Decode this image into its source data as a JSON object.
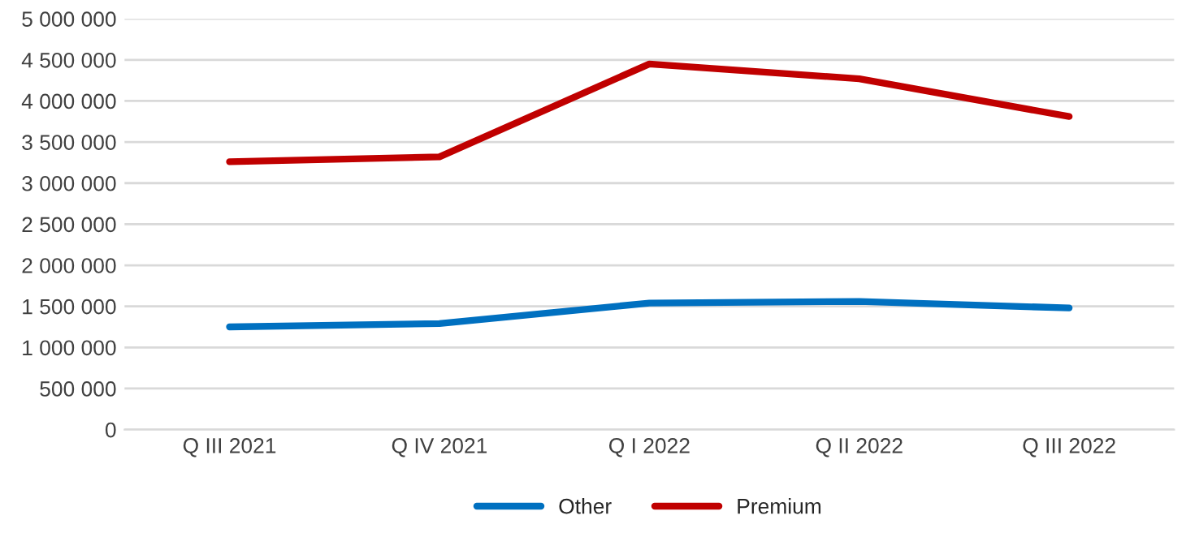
{
  "chart_data": {
    "type": "line",
    "categories": [
      "Q III 2021",
      "Q IV 2021",
      "Q I 2022",
      "Q II 2022",
      "Q III 2022"
    ],
    "series": [
      {
        "name": "Other",
        "color": "#0070c0",
        "values": [
          1250000,
          1290000,
          1540000,
          1560000,
          1480000
        ]
      },
      {
        "name": "Premium",
        "color": "#c00000",
        "values": [
          3260000,
          3320000,
          4450000,
          4270000,
          3810000
        ]
      }
    ],
    "ylim": [
      0,
      5000000
    ],
    "yticks": [
      {
        "value": 0,
        "label": "0"
      },
      {
        "value": 500000,
        "label": "500 000"
      },
      {
        "value": 1000000,
        "label": "1 000 000"
      },
      {
        "value": 1500000,
        "label": "1 500 000"
      },
      {
        "value": 2000000,
        "label": "2 000 000"
      },
      {
        "value": 2500000,
        "label": "2 500 000"
      },
      {
        "value": 3000000,
        "label": "3 000 000"
      },
      {
        "value": 3500000,
        "label": "3 500 000"
      },
      {
        "value": 4000000,
        "label": "4 000 000"
      },
      {
        "value": 4500000,
        "label": "4 500 000"
      },
      {
        "value": 5000000,
        "label": "5 000 000"
      }
    ],
    "grid": "y",
    "legend": "bottom",
    "marker": "none",
    "line_style": "solid"
  }
}
